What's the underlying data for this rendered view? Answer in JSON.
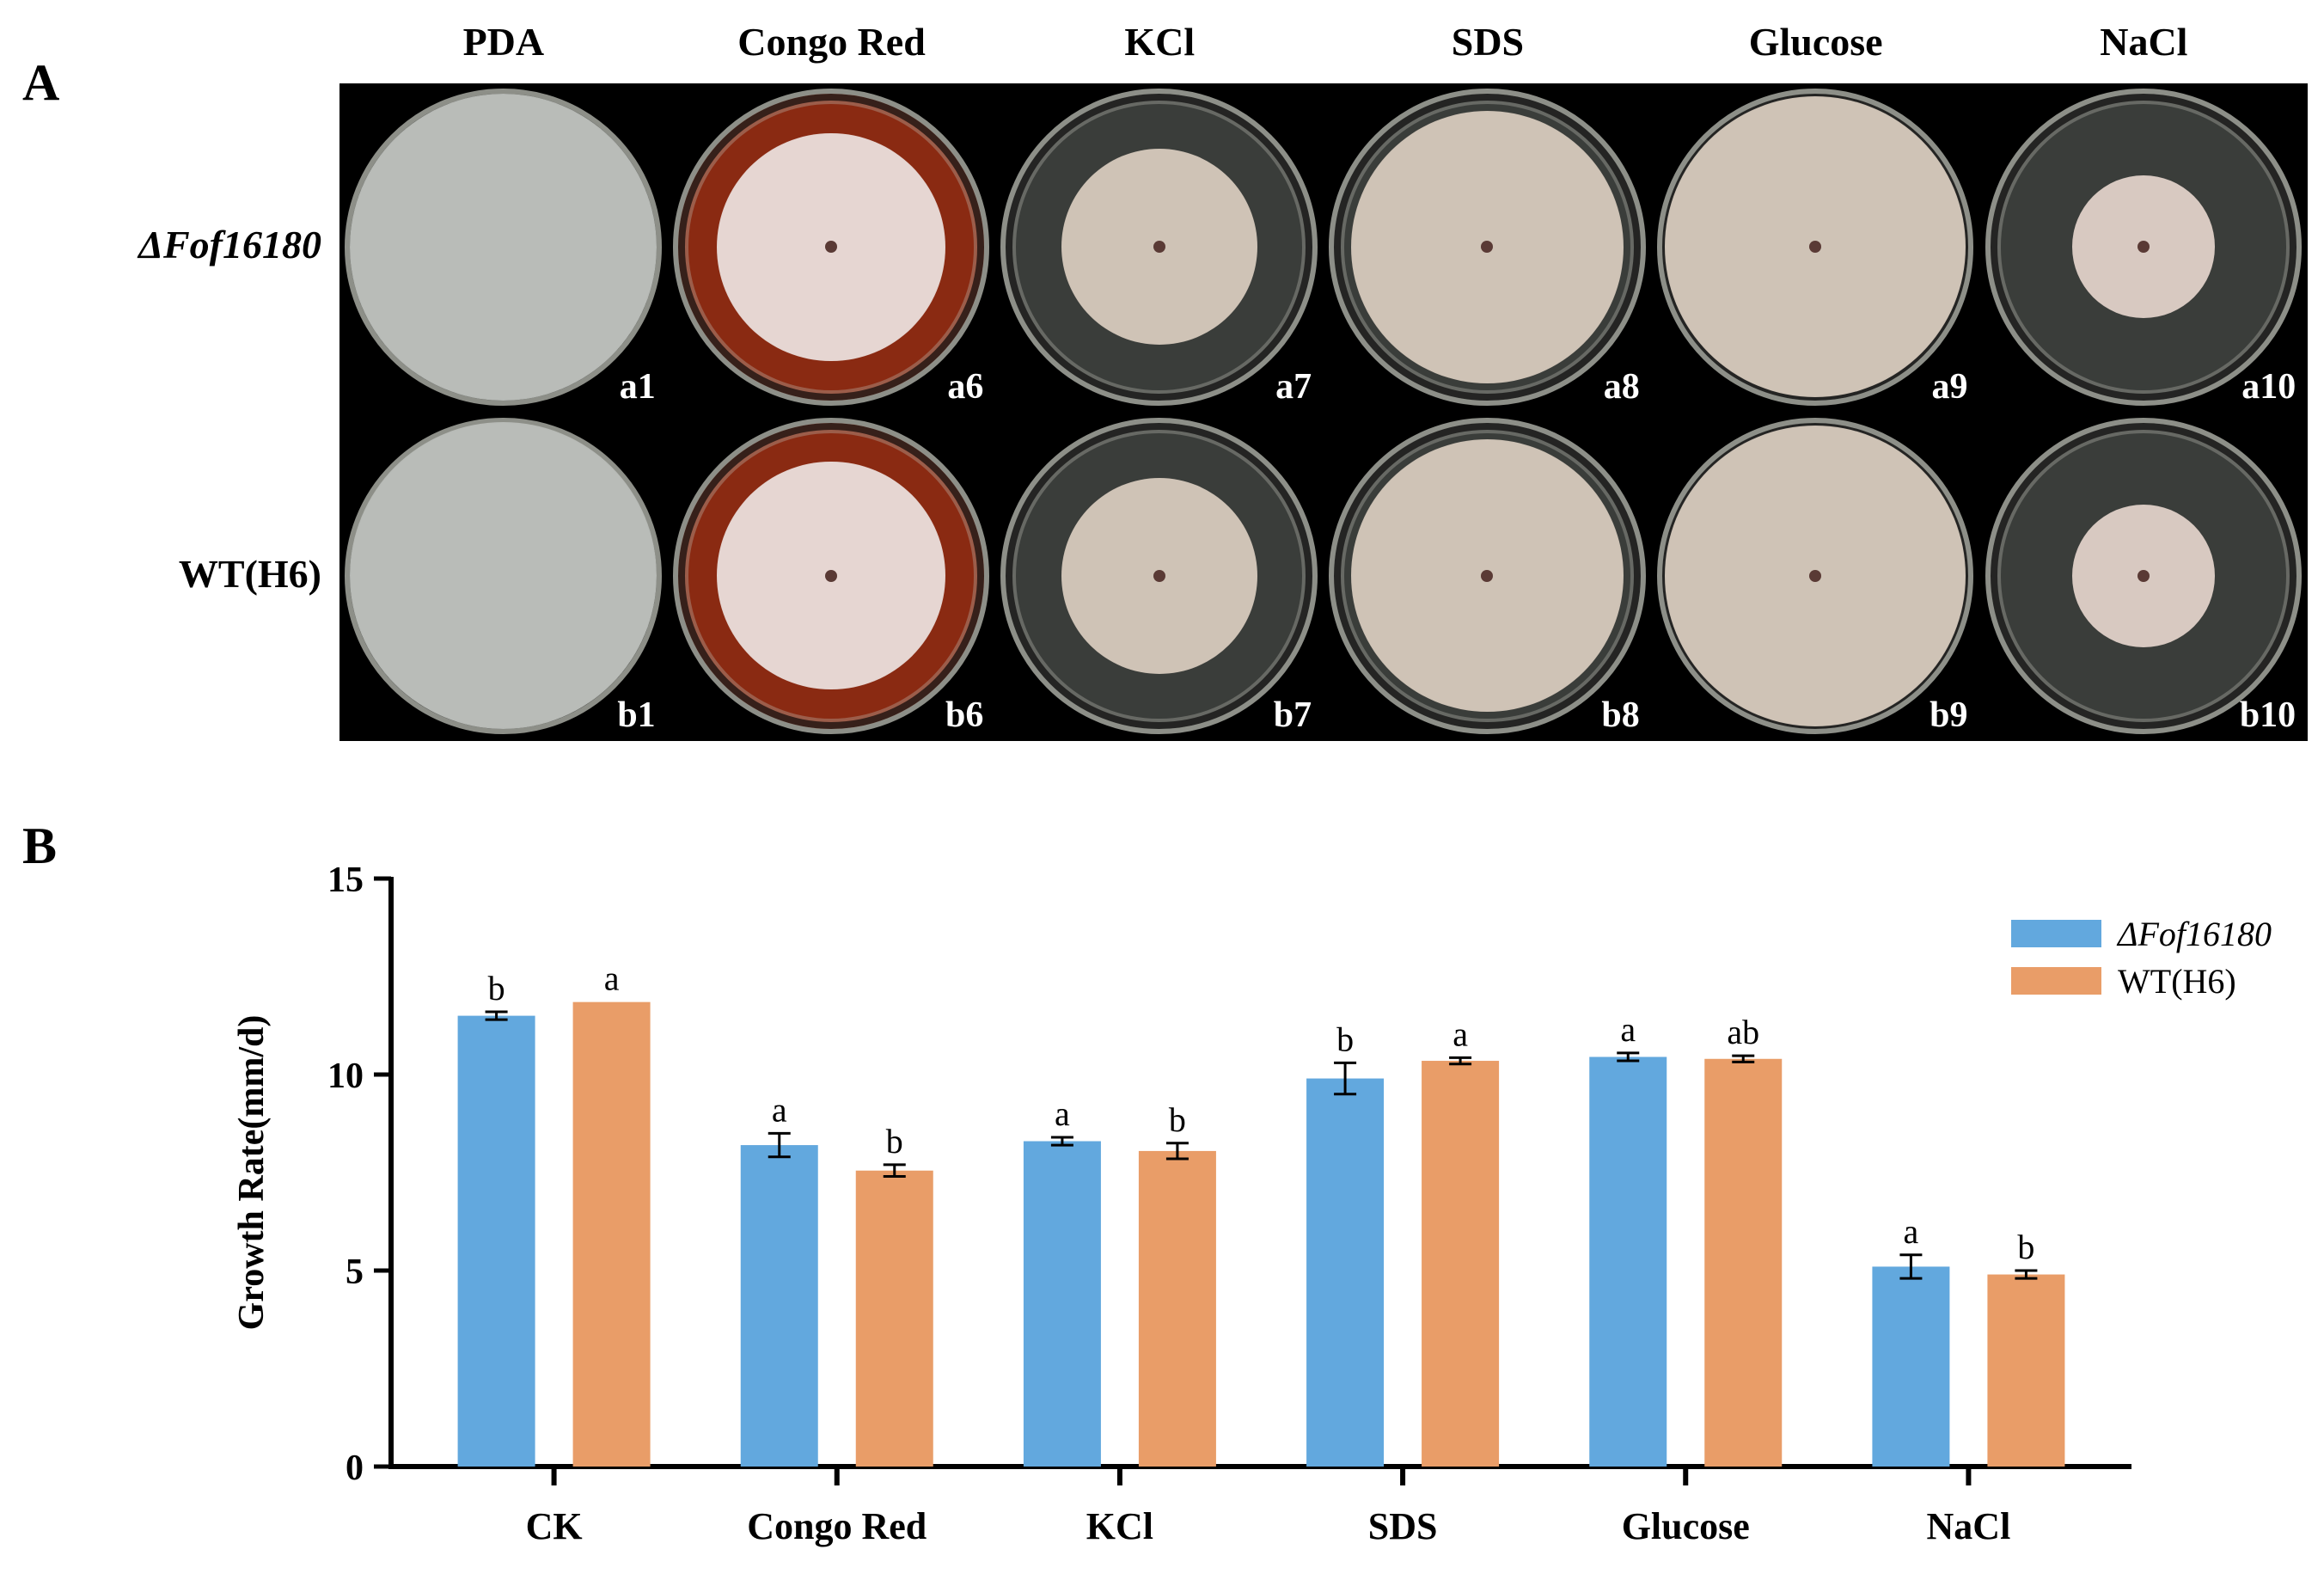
{
  "panel_a": {
    "letter": "A",
    "columns": [
      "PDA",
      "Congo Red",
      "KCl",
      "SDS",
      "Glucose",
      "NaCl"
    ],
    "rows": [
      "ΔFof16180",
      "WT(H6)"
    ],
    "tags": [
      [
        "a1",
        "a6",
        "a7",
        "a8",
        "a9",
        "a10"
      ],
      [
        "b1",
        "b6",
        "b7",
        "b8",
        "b9",
        "b10"
      ]
    ],
    "colors": {
      "plate_bg_normal": "#3a3d3a",
      "plate_bg_congo": "#8a2a12",
      "colony_grey": "#b9bcb8",
      "colony_pink": "#d8c9c1",
      "colony_beige": "#cfc3b6",
      "colony_congo": "#e6d6d2"
    }
  },
  "panel_b": {
    "letter": "B",
    "chart_data": {
      "type": "bar",
      "ylabel": "Growth Rate(mm/d)",
      "xlabel": "",
      "ylim": [
        0,
        15
      ],
      "yticks": [
        0,
        5,
        10,
        15
      ],
      "categories": [
        "CK",
        "Congo Red",
        "KCl",
        "SDS",
        "Glucose",
        "NaCl"
      ],
      "series": [
        {
          "name": "ΔFof16180",
          "italic": true,
          "color": "#62a8de",
          "values": [
            11.5,
            8.2,
            8.3,
            9.9,
            10.45,
            5.1
          ],
          "errors": [
            0.1,
            0.3,
            0.1,
            0.4,
            0.1,
            0.3
          ],
          "labels": [
            "b",
            "a",
            "a",
            "b",
            "a",
            "a"
          ]
        },
        {
          "name": "WT(H6)",
          "italic": false,
          "color": "#e99d68",
          "values": [
            11.85,
            7.55,
            8.05,
            10.35,
            10.4,
            4.9
          ],
          "errors": [
            0.0,
            0.15,
            0.2,
            0.08,
            0.08,
            0.1
          ],
          "labels": [
            "a",
            "b",
            "b",
            "a",
            "ab",
            "b"
          ]
        }
      ],
      "legend_position": "top-right"
    }
  }
}
